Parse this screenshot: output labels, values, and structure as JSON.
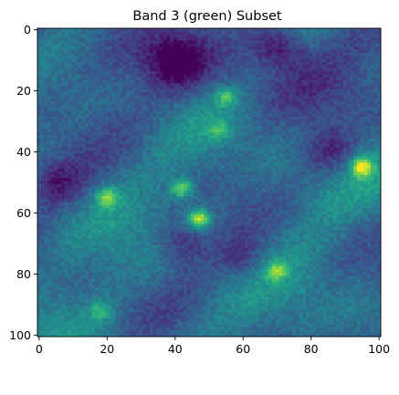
{
  "chart_data": {
    "type": "heatmap",
    "title": "Band 3 (green) Subset",
    "xlabel": "",
    "ylabel": "",
    "xlim": [
      0,
      100
    ],
    "ylim": [
      100,
      0
    ],
    "x_ticks": [
      0,
      20,
      40,
      60,
      80,
      100
    ],
    "y_ticks": [
      0,
      20,
      40,
      60,
      80,
      100
    ],
    "grid": false,
    "legend": "none",
    "colormap": "viridis",
    "value_range": [
      0,
      1
    ],
    "rows": 101,
    "cols": 101,
    "bright_features": [
      {
        "row": 45,
        "col": 95,
        "value": 0.9
      },
      {
        "row": 62,
        "col": 47,
        "value": 0.95
      },
      {
        "row": 52,
        "col": 42,
        "value": 0.8
      },
      {
        "row": 55,
        "col": 20,
        "value": 0.75
      },
      {
        "row": 22,
        "col": 55,
        "value": 0.65
      },
      {
        "row": 79,
        "col": 70,
        "value": 0.7
      },
      {
        "row": 33,
        "col": 53,
        "value": 0.6
      },
      {
        "row": 92,
        "col": 18,
        "value": 0.6
      }
    ],
    "dark_features": [
      {
        "row": 10,
        "col": 40,
        "value": 0.05
      },
      {
        "row": 5,
        "col": 70,
        "value": 0.05
      },
      {
        "row": 40,
        "col": 85,
        "value": 0.1
      },
      {
        "row": 50,
        "col": 5,
        "value": 0.1
      },
      {
        "row": 70,
        "col": 42,
        "value": 0.1
      },
      {
        "row": 75,
        "col": 60,
        "value": 0.15
      }
    ]
  }
}
